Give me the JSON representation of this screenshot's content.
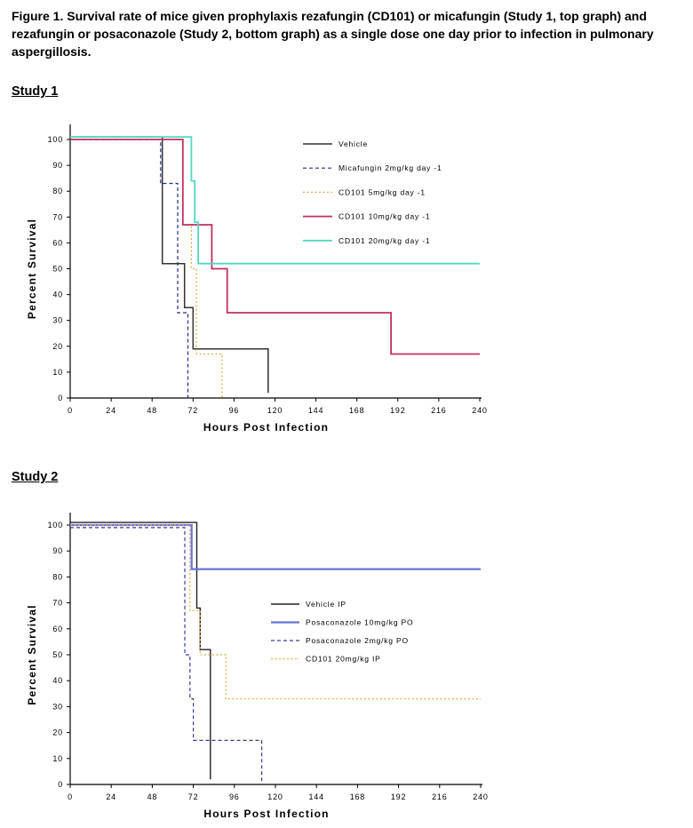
{
  "figure": {
    "caption": "Figure 1.  Survival rate of mice given prophylaxis rezafungin (CD101) or micafungin (Study 1, top graph) and rezafungin or posaconazole (Study 2, bottom graph) as a single dose one day prior to infection in pulmonary aspergillosis."
  },
  "chart_data": [
    {
      "type": "line",
      "subtype": "kaplan-meier step",
      "heading": "Study 1",
      "title": "",
      "xlabel": "Hours Post Infection",
      "ylabel": "Percent Survival",
      "xlim": [
        0,
        240
      ],
      "ylim": [
        0,
        100
      ],
      "xticks": [
        0,
        24,
        48,
        72,
        96,
        120,
        144,
        168,
        192,
        216,
        240
      ],
      "yticks": [
        0,
        10,
        20,
        30,
        40,
        50,
        60,
        70,
        80,
        90,
        100
      ],
      "legend_position": "top-right",
      "series": [
        {
          "name": "Vehicle",
          "color": "#333333",
          "style": "solid",
          "width": 1.5,
          "points": [
            [
              0,
              101
            ],
            [
              54,
              101
            ],
            [
              54,
              52
            ],
            [
              67,
              52
            ],
            [
              67,
              35
            ],
            [
              72,
              35
            ],
            [
              72,
              19
            ],
            [
              116,
              19
            ],
            [
              116,
              2
            ]
          ]
        },
        {
          "name": "Micafungin 2mg/kg day -1",
          "color": "#2a2a86",
          "style": "dashed",
          "width": 1.2,
          "points": [
            [
              0,
              100
            ],
            [
              53,
              100
            ],
            [
              53,
              83
            ],
            [
              63,
              83
            ],
            [
              63,
              33
            ],
            [
              69,
              33
            ],
            [
              69,
              0
            ]
          ]
        },
        {
          "name": "CD101 5mg/kg day -1",
          "color": "#e8a84a",
          "style": "dotted",
          "width": 1.3,
          "points": [
            [
              0,
              100
            ],
            [
              66,
              100
            ],
            [
              66,
              67
            ],
            [
              71,
              67
            ],
            [
              71,
              50
            ],
            [
              74,
              50
            ],
            [
              74,
              17
            ],
            [
              89,
              17
            ],
            [
              89,
              0
            ]
          ]
        },
        {
          "name": "CD101 10mg/kg day -1",
          "color": "#c03060",
          "style": "solid",
          "width": 1.8,
          "points": [
            [
              0,
              100
            ],
            [
              66,
              100
            ],
            [
              66,
              67
            ],
            [
              83,
              67
            ],
            [
              83,
              50
            ],
            [
              92,
              50
            ],
            [
              92,
              33
            ],
            [
              188,
              33
            ],
            [
              188,
              17
            ],
            [
              240,
              17
            ]
          ]
        },
        {
          "name": "CD101 20mg/kg day -1",
          "color": "#55d6c2",
          "style": "solid",
          "width": 1.8,
          "points": [
            [
              0,
              101
            ],
            [
              71,
              101
            ],
            [
              71,
              84
            ],
            [
              73,
              84
            ],
            [
              73,
              68
            ],
            [
              75,
              68
            ],
            [
              75,
              52
            ],
            [
              240,
              52
            ]
          ]
        }
      ]
    },
    {
      "type": "line",
      "subtype": "kaplan-meier step",
      "heading": "Study 2",
      "title": "",
      "xlabel": "Hours Post Infection",
      "ylabel": "Percent Survival",
      "xlim": [
        0,
        240
      ],
      "ylim": [
        0,
        100
      ],
      "xticks": [
        0,
        24,
        48,
        72,
        96,
        120,
        144,
        168,
        192,
        216,
        240
      ],
      "yticks": [
        0,
        10,
        20,
        30,
        40,
        50,
        60,
        70,
        80,
        90,
        100
      ],
      "legend_position": "center-right",
      "series": [
        {
          "name": "Vehicle IP",
          "color": "#222222",
          "style": "solid",
          "width": 1.4,
          "points": [
            [
              0,
              101
            ],
            [
              74,
              101
            ],
            [
              74,
              68
            ],
            [
              76,
              68
            ],
            [
              76,
              52
            ],
            [
              82,
              52
            ],
            [
              82,
              2
            ]
          ]
        },
        {
          "name": "Posaconazole 10mg/kg PO",
          "color": "#6b74d8",
          "style": "solid",
          "width": 2.2,
          "points": [
            [
              0,
              100
            ],
            [
              71,
              100
            ],
            [
              71,
              83
            ],
            [
              240,
              83
            ]
          ]
        },
        {
          "name": "Posaconazole 2mg/kg PO",
          "color": "#3a3a96",
          "style": "dashed",
          "width": 1.2,
          "points": [
            [
              0,
              99
            ],
            [
              67,
              99
            ],
            [
              67,
              50
            ],
            [
              70,
              50
            ],
            [
              70,
              33
            ],
            [
              72,
              33
            ],
            [
              72,
              17
            ],
            [
              112,
              17
            ],
            [
              112,
              0
            ]
          ]
        },
        {
          "name": "CD101 20mg/kg IP",
          "color": "#e8a84a",
          "style": "dotted",
          "width": 1.3,
          "points": [
            [
              0,
              100
            ],
            [
              70,
              100
            ],
            [
              70,
              67
            ],
            [
              76,
              67
            ],
            [
              76,
              50
            ],
            [
              91,
              50
            ],
            [
              91,
              33
            ],
            [
              240,
              33
            ]
          ]
        }
      ]
    }
  ]
}
